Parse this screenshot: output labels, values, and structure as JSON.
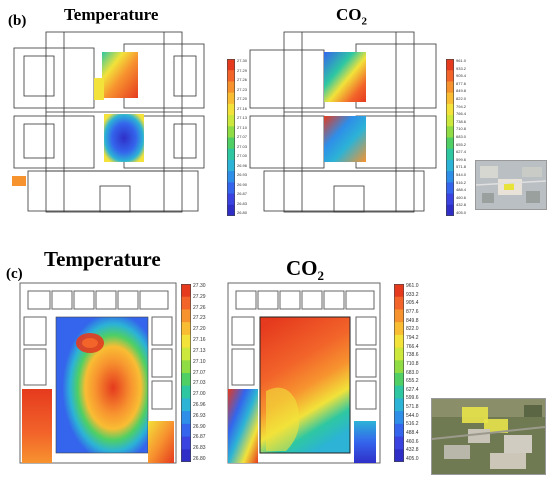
{
  "panel_b": {
    "label": "(b)",
    "temperature_title": "Temperature",
    "co2_title_main": "CO",
    "co2_title_sub": "2"
  },
  "panel_c": {
    "label": "(c)",
    "temperature_title": "Temperature",
    "co2_title_main": "CO",
    "co2_title_sub": "2"
  },
  "temperature_scale": [
    "27.30",
    "27.29",
    "27.26",
    "27.23",
    "27.20",
    "27.16",
    "27.13",
    "27.10",
    "27.07",
    "27.03",
    "27.00",
    "26.96",
    "26.93",
    "26.90",
    "26.87",
    "26.83",
    "26.80"
  ],
  "co2_scale": [
    "961.0",
    "933.2",
    "905.4",
    "877.6",
    "849.8",
    "822.0",
    "794.2",
    "766.4",
    "738.6",
    "710.8",
    "683.0",
    "655.2",
    "627.4",
    "599.6",
    "571.8",
    "544.0",
    "516.2",
    "488.4",
    "460.6",
    "432.8",
    "405.0"
  ],
  "colors": {
    "scale": [
      "#e53a1e",
      "#f2642a",
      "#f7932f",
      "#f9bd33",
      "#f2e23a",
      "#cce83c",
      "#8fdc44",
      "#4fcf64",
      "#2ec7a2",
      "#2cb3d6",
      "#2e8ee8",
      "#3465ec",
      "#3a42e0",
      "#2f2fc8"
    ]
  }
}
